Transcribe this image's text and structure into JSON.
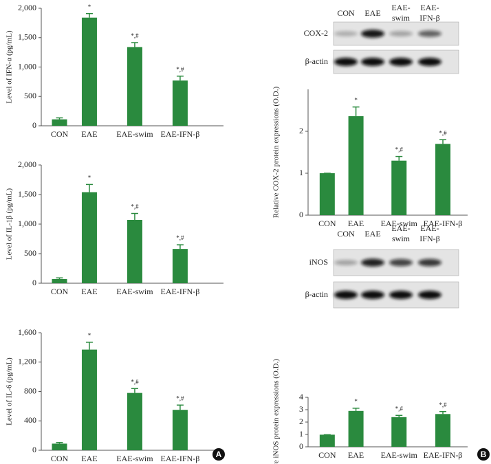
{
  "chart_data": [
    {
      "type": "bar",
      "ylabel": "Level of IFN-α (pg/mL)",
      "categories": [
        "CON",
        "EAE",
        "EAE-swim",
        "EAE-IFN-β"
      ],
      "values": [
        110,
        1840,
        1340,
        770
      ],
      "errors": [
        25,
        70,
        75,
        75
      ],
      "annotations": [
        null,
        "*",
        "*,#",
        "*,#"
      ],
      "color": "#2a8a3e",
      "ylim": [
        0,
        2000
      ],
      "yticks": [
        0,
        500,
        {
          "value": 1000,
          "label": "1,000"
        },
        {
          "value": 1500,
          "label": "1,500"
        },
        {
          "value": 2000,
          "label": "2,000"
        }
      ]
    },
    {
      "type": "bar",
      "ylabel": "Level of IL-1β (pg/mL)",
      "categories": [
        "CON",
        "EAE",
        "EAE-swim",
        "EAE-IFN-β"
      ],
      "values": [
        70,
        1540,
        1070,
        580
      ],
      "errors": [
        20,
        130,
        110,
        70
      ],
      "annotations": [
        null,
        "*",
        "*,#",
        "*,#"
      ],
      "color": "#2a8a3e",
      "ylim": [
        0,
        2000
      ],
      "yticks": [
        0,
        500,
        {
          "value": 1000,
          "label": "1,000"
        },
        {
          "value": 1500,
          "label": "1,500"
        },
        {
          "value": 2000,
          "label": "2,000"
        }
      ]
    },
    {
      "type": "bar",
      "ylabel": "Level of IL-6 (pg/mL)",
      "categories": [
        "CON",
        "EAE",
        "EAE-swim",
        "EAE-IFN-β"
      ],
      "values": [
        90,
        1370,
        780,
        550
      ],
      "errors": [
        15,
        100,
        60,
        65
      ],
      "annotations": [
        null,
        "*",
        "*,#",
        "*,#"
      ],
      "color": "#2a8a3e",
      "ylim": [
        0,
        1600
      ],
      "yticks": [
        0,
        400,
        800,
        {
          "value": 1200,
          "label": "1,200"
        },
        {
          "value": 1600,
          "label": "1,600"
        }
      ]
    },
    {
      "type": "bar",
      "ylabel": "Relative COX-2 protein expressions (O.D.)",
      "categories": [
        "CON",
        "EAE",
        "EAE-swim",
        "EAE-IFN-β"
      ],
      "values": [
        1,
        2.36,
        1.3,
        1.7
      ],
      "errors": [
        0,
        0.22,
        0.1,
        0.1
      ],
      "annotations": [
        null,
        "*",
        "*,#",
        "*,#"
      ],
      "color": "#2a8a3e",
      "ylim": [
        0,
        3
      ],
      "yticks": [
        0,
        1,
        2
      ]
    },
    {
      "type": "bar",
      "ylabel": "Relative iNOS protein expressions (O.D.)",
      "categories": [
        "CON",
        "EAE",
        "EAE-swim",
        "EAE-IFN-β"
      ],
      "values": [
        0.98,
        2.9,
        2.4,
        2.65
      ],
      "errors": [
        0,
        0.22,
        0.14,
        0.2
      ],
      "annotations": [
        null,
        "*",
        "*,#",
        "*,#"
      ],
      "color": "#2a8a3e",
      "ylim": [
        0,
        4
      ],
      "yticks": [
        0,
        1,
        2,
        3,
        4
      ]
    }
  ],
  "blots": [
    {
      "columns": [
        [
          "CON"
        ],
        [
          "EAE"
        ],
        [
          "EAE-",
          "swim"
        ],
        [
          "EAE-",
          "IFN-β"
        ]
      ],
      "rows": [
        "COX-2",
        "β-actin"
      ]
    },
    {
      "columns": [
        [
          "CON"
        ],
        [
          "EAE"
        ],
        [
          "EAE-",
          "swim"
        ],
        [
          "EAE-",
          "IFN-β"
        ]
      ],
      "rows": [
        "iNOS",
        "β-actin"
      ]
    }
  ],
  "panels": [
    "A",
    "B"
  ]
}
